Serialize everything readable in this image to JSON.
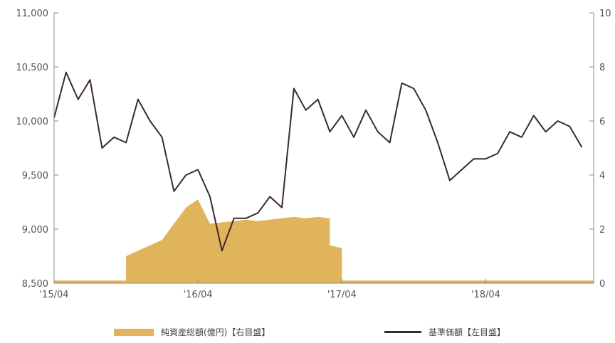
{
  "chart_data": {
    "type": "line",
    "x_range": [
      "2015-04",
      "2019-01"
    ],
    "x_ticks": [
      "'15/04",
      "'16/04",
      "'17/04",
      "'18/04"
    ],
    "y_left": {
      "label": "",
      "lim": [
        8500,
        11000
      ],
      "ticks": [
        "8,500",
        "9,000",
        "9,500",
        "10,000",
        "10,500",
        "11,000"
      ]
    },
    "y_right": {
      "label": "",
      "lim": [
        0,
        10
      ],
      "ticks": [
        "0",
        "2",
        "4",
        "6",
        "8",
        "10"
      ]
    },
    "series": [
      {
        "name": "純資産総額(億円)【右目盛】",
        "type": "area",
        "axis": "right",
        "color": "#E0B45A",
        "points": [
          [
            "2015-04",
            0.1
          ],
          [
            "2015-10",
            0.1
          ],
          [
            "2015-10",
            1.0
          ],
          [
            "2015-11",
            1.2
          ],
          [
            "2015-12",
            1.4
          ],
          [
            "2016-01",
            1.6
          ],
          [
            "2016-02",
            2.2
          ],
          [
            "2016-03",
            2.8
          ],
          [
            "2016-04",
            3.1
          ],
          [
            "2016-05",
            2.2
          ],
          [
            "2016-06",
            2.25
          ],
          [
            "2016-07",
            2.3
          ],
          [
            "2016-08",
            2.35
          ],
          [
            "2016-09",
            2.3
          ],
          [
            "2016-10",
            2.35
          ],
          [
            "2016-11",
            2.4
          ],
          [
            "2016-12",
            2.45
          ],
          [
            "2017-01",
            2.4
          ],
          [
            "2017-02",
            2.45
          ],
          [
            "2017-03",
            2.4
          ],
          [
            "2017-03",
            1.4
          ],
          [
            "2017-04",
            1.3
          ],
          [
            "2017-04",
            0.1
          ],
          [
            "2019-01",
            0.1
          ]
        ]
      },
      {
        "name": "基準価額【左目盛】",
        "type": "line",
        "axis": "left",
        "color": "#3A2A2A",
        "points": [
          [
            "2015-04",
            10030
          ],
          [
            "2015-05",
            10450
          ],
          [
            "2015-06",
            10200
          ],
          [
            "2015-07",
            10380
          ],
          [
            "2015-08",
            9750
          ],
          [
            "2015-09",
            9850
          ],
          [
            "2015-10",
            9800
          ],
          [
            "2015-11",
            10200
          ],
          [
            "2015-12",
            10000
          ],
          [
            "2016-01",
            9850
          ],
          [
            "2016-02",
            9350
          ],
          [
            "2016-03",
            9500
          ],
          [
            "2016-04",
            9550
          ],
          [
            "2016-05",
            9300
          ],
          [
            "2016-06",
            8800
          ],
          [
            "2016-07",
            9100
          ],
          [
            "2016-08",
            9100
          ],
          [
            "2016-09",
            9150
          ],
          [
            "2016-10",
            9300
          ],
          [
            "2016-11",
            9200
          ],
          [
            "2016-12",
            10300
          ],
          [
            "2017-01",
            10100
          ],
          [
            "2017-02",
            10200
          ],
          [
            "2017-03",
            9900
          ],
          [
            "2017-04",
            10050
          ],
          [
            "2017-05",
            9850
          ],
          [
            "2017-06",
            10100
          ],
          [
            "2017-07",
            9900
          ],
          [
            "2017-08",
            9800
          ],
          [
            "2017-09",
            10350
          ],
          [
            "2017-10",
            10300
          ],
          [
            "2017-11",
            10100
          ],
          [
            "2017-12",
            9800
          ],
          [
            "2018-01",
            9450
          ],
          [
            "2018-02",
            9550
          ],
          [
            "2018-03",
            9650
          ],
          [
            "2018-04",
            9650
          ],
          [
            "2018-05",
            9700
          ],
          [
            "2018-06",
            9900
          ],
          [
            "2018-07",
            9850
          ],
          [
            "2018-08",
            10050
          ],
          [
            "2018-09",
            9900
          ],
          [
            "2018-10",
            10000
          ],
          [
            "2018-11",
            9950
          ],
          [
            "2018-12",
            9760
          ]
        ]
      }
    ],
    "grid": false,
    "legend_position": "bottom"
  }
}
